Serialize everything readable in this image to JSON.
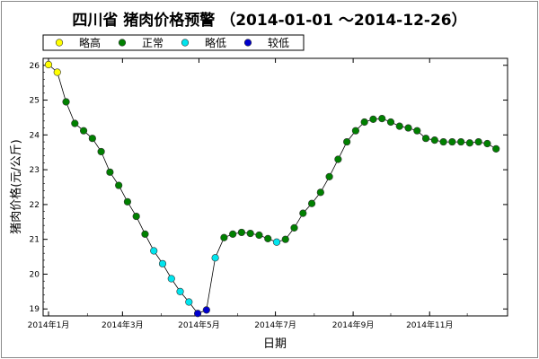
{
  "chart_data": {
    "type": "line",
    "title": "四川省 猪肉价格预警 （2014-01-01 ～2014-12-26）",
    "xlabel": "日期",
    "ylabel": "猪肉价格(元/公斤)",
    "xlim": [
      "2014-01-01",
      "2014-12-26"
    ],
    "ylim": [
      18.8,
      26.2
    ],
    "y_ticks": [
      19,
      20,
      21,
      22,
      23,
      24,
      25,
      26
    ],
    "x_ticks": [
      {
        "date": "2014-01-01",
        "label": "2014年1月"
      },
      {
        "date": "2014-03-01",
        "label": "2014年3月"
      },
      {
        "date": "2014-05-01",
        "label": "2014年5月"
      },
      {
        "date": "2014-07-01",
        "label": "2014年7月"
      },
      {
        "date": "2014-09-01",
        "label": "2014年9月"
      },
      {
        "date": "2014-11-01",
        "label": "2014年11月"
      }
    ],
    "grid": false,
    "legend_position": "top-left",
    "legend": [
      {
        "key": "high",
        "label": "略高",
        "color": "#ffff00"
      },
      {
        "key": "normal",
        "label": "正常",
        "color": "#008000"
      },
      {
        "key": "low",
        "label": "略低",
        "color": "#00e5ee"
      },
      {
        "key": "lower",
        "label": "较低",
        "color": "#0000cd"
      }
    ],
    "series": [
      {
        "points": [
          {
            "x": "2014-01-01",
            "y": 26.02,
            "level": "high"
          },
          {
            "x": "2014-01-08",
            "y": 25.8,
            "level": "high"
          },
          {
            "x": "2014-01-15",
            "y": 24.95,
            "level": "normal"
          },
          {
            "x": "2014-01-22",
            "y": 24.33,
            "level": "normal"
          },
          {
            "x": "2014-01-29",
            "y": 24.12,
            "level": "normal"
          },
          {
            "x": "2014-02-05",
            "y": 23.9,
            "level": "normal"
          },
          {
            "x": "2014-02-12",
            "y": 23.52,
            "level": "normal"
          },
          {
            "x": "2014-02-19",
            "y": 22.93,
            "level": "normal"
          },
          {
            "x": "2014-02-26",
            "y": 22.55,
            "level": "normal"
          },
          {
            "x": "2014-03-05",
            "y": 22.08,
            "level": "normal"
          },
          {
            "x": "2014-03-12",
            "y": 21.66,
            "level": "normal"
          },
          {
            "x": "2014-03-19",
            "y": 21.15,
            "level": "normal"
          },
          {
            "x": "2014-03-26",
            "y": 20.67,
            "level": "low"
          },
          {
            "x": "2014-04-02",
            "y": 20.3,
            "level": "low"
          },
          {
            "x": "2014-04-09",
            "y": 19.87,
            "level": "low"
          },
          {
            "x": "2014-04-16",
            "y": 19.5,
            "level": "low"
          },
          {
            "x": "2014-04-23",
            "y": 19.2,
            "level": "low"
          },
          {
            "x": "2014-04-30",
            "y": 18.87,
            "level": "lower"
          },
          {
            "x": "2014-05-07",
            "y": 18.97,
            "level": "lower"
          },
          {
            "x": "2014-05-14",
            "y": 20.47,
            "level": "low"
          },
          {
            "x": "2014-05-21",
            "y": 21.05,
            "level": "normal"
          },
          {
            "x": "2014-05-28",
            "y": 21.15,
            "level": "normal"
          },
          {
            "x": "2014-06-04",
            "y": 21.2,
            "level": "normal"
          },
          {
            "x": "2014-06-11",
            "y": 21.17,
            "level": "normal"
          },
          {
            "x": "2014-06-18",
            "y": 21.12,
            "level": "normal"
          },
          {
            "x": "2014-06-25",
            "y": 21.02,
            "level": "normal"
          },
          {
            "x": "2014-07-02",
            "y": 20.92,
            "level": "low"
          },
          {
            "x": "2014-07-09",
            "y": 21.0,
            "level": "normal"
          },
          {
            "x": "2014-07-16",
            "y": 21.33,
            "level": "normal"
          },
          {
            "x": "2014-07-23",
            "y": 21.75,
            "level": "normal"
          },
          {
            "x": "2014-07-30",
            "y": 22.03,
            "level": "normal"
          },
          {
            "x": "2014-08-06",
            "y": 22.35,
            "level": "normal"
          },
          {
            "x": "2014-08-13",
            "y": 22.8,
            "level": "normal"
          },
          {
            "x": "2014-08-20",
            "y": 23.3,
            "level": "normal"
          },
          {
            "x": "2014-08-27",
            "y": 23.8,
            "level": "normal"
          },
          {
            "x": "2014-09-03",
            "y": 24.12,
            "level": "normal"
          },
          {
            "x": "2014-09-10",
            "y": 24.37,
            "level": "normal"
          },
          {
            "x": "2014-09-17",
            "y": 24.45,
            "level": "normal"
          },
          {
            "x": "2014-09-24",
            "y": 24.47,
            "level": "normal"
          },
          {
            "x": "2014-10-01",
            "y": 24.37,
            "level": "normal"
          },
          {
            "x": "2014-10-08",
            "y": 24.25,
            "level": "normal"
          },
          {
            "x": "2014-10-15",
            "y": 24.2,
            "level": "normal"
          },
          {
            "x": "2014-10-22",
            "y": 24.12,
            "level": "normal"
          },
          {
            "x": "2014-10-29",
            "y": 23.9,
            "level": "normal"
          },
          {
            "x": "2014-11-05",
            "y": 23.85,
            "level": "normal"
          },
          {
            "x": "2014-11-12",
            "y": 23.8,
            "level": "normal"
          },
          {
            "x": "2014-11-19",
            "y": 23.8,
            "level": "normal"
          },
          {
            "x": "2014-11-26",
            "y": 23.8,
            "level": "normal"
          },
          {
            "x": "2014-12-03",
            "y": 23.77,
            "level": "normal"
          },
          {
            "x": "2014-12-10",
            "y": 23.8,
            "level": "normal"
          },
          {
            "x": "2014-12-17",
            "y": 23.75,
            "level": "normal"
          },
          {
            "x": "2014-12-24",
            "y": 23.6,
            "level": "normal"
          }
        ]
      }
    ]
  }
}
